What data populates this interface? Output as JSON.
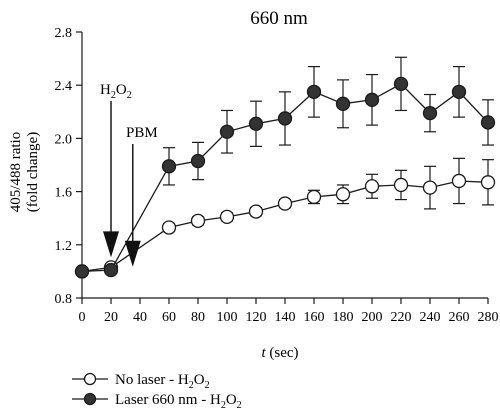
{
  "chart_data": {
    "type": "line",
    "title": "660 nm",
    "xlabel_italic": "t",
    "xlabel_rest": "(sec)",
    "ylabel_line1": "405/488 ratio",
    "ylabel_line2": "(fold change)",
    "xlim": [
      0,
      280
    ],
    "ylim": [
      0.8,
      2.8
    ],
    "x_ticks": [
      0,
      20,
      40,
      60,
      80,
      100,
      120,
      140,
      160,
      180,
      200,
      220,
      240,
      260,
      280
    ],
    "y_ticks": [
      "0.8",
      "1.2",
      "1.6",
      "2.0",
      "2.4",
      "2.8"
    ],
    "grid": false,
    "legend_position": "bottom-left",
    "series": [
      {
        "name_main": "No laser - H",
        "name_sub": "2",
        "name_mid": "O",
        "name_sub2": "2",
        "marker": "open-circle",
        "x": [
          0,
          20,
          60,
          80,
          100,
          120,
          140,
          160,
          180,
          200,
          220,
          240,
          260,
          280
        ],
        "y": [
          1.0,
          1.03,
          1.33,
          1.38,
          1.41,
          1.45,
          1.51,
          1.56,
          1.58,
          1.64,
          1.65,
          1.63,
          1.68,
          1.67
        ],
        "err": [
          0.02,
          0.02,
          0.03,
          0.03,
          0.03,
          0.03,
          0.03,
          0.05,
          0.07,
          0.09,
          0.11,
          0.16,
          0.17,
          0.17
        ]
      },
      {
        "name_main": "Laser 660 nm - H",
        "name_sub": "2",
        "name_mid": "O",
        "name_sub2": "2",
        "marker": "filled-circle",
        "x": [
          0,
          20,
          60,
          80,
          100,
          120,
          140,
          160,
          180,
          200,
          220,
          240,
          260,
          280
        ],
        "y": [
          1.0,
          1.01,
          1.79,
          1.83,
          2.05,
          2.11,
          2.15,
          2.35,
          2.26,
          2.29,
          2.41,
          2.19,
          2.35,
          2.12
        ],
        "err": [
          0.02,
          0.02,
          0.14,
          0.14,
          0.16,
          0.17,
          0.2,
          0.19,
          0.18,
          0.19,
          0.2,
          0.14,
          0.19,
          0.17
        ]
      }
    ],
    "annotations": [
      {
        "text_main": "H",
        "sub": "2",
        "mid": "O",
        "sub2": "2",
        "arrow_x": 20,
        "arrow_tip_y": 1.03
      },
      {
        "text": "PBM",
        "arrow_x": 35,
        "arrow_tip_y": 1.2
      }
    ]
  }
}
